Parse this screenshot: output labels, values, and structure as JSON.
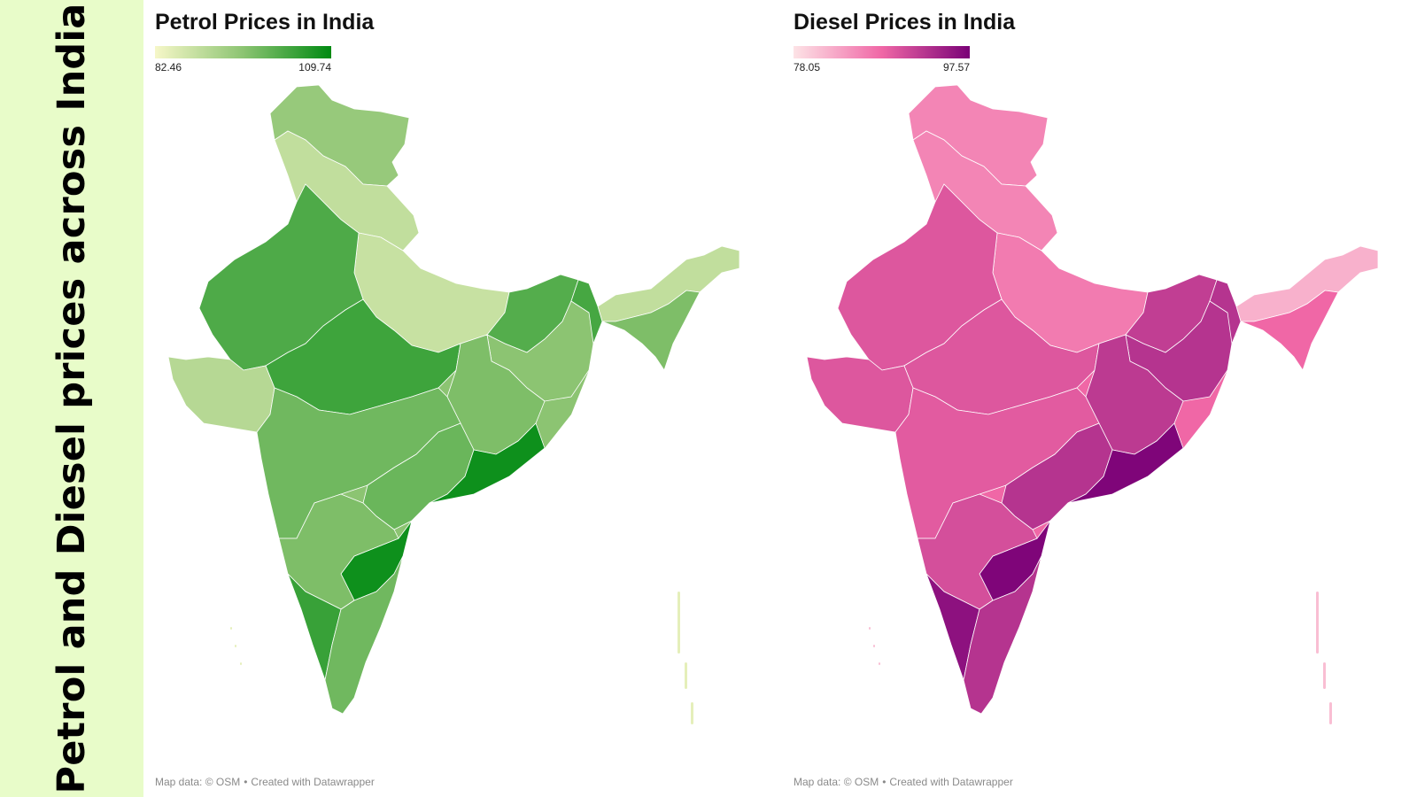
{
  "side_title": "Petrol and Diesel prices across India",
  "attribution": {
    "map_data": "Map data: © OSM",
    "created_with": "Created with Datawrapper"
  },
  "maps": [
    {
      "title": "Petrol Prices in India",
      "legend": {
        "min": "82.46",
        "max": "109.74"
      },
      "colors": {
        "low": "#f6f7c8",
        "mid": "#8cc472",
        "high": "#008a12",
        "border": "#ffffff"
      }
    },
    {
      "title": "Diesel Prices in India",
      "legend": {
        "min": "78.05",
        "max": "97.57"
      },
      "colors": {
        "low": "#fde3e6",
        "mid": "#f067a6",
        "high": "#7a0177",
        "border": "#ffffff"
      }
    }
  ],
  "chart_data": {
    "type": "choropleth",
    "unit": "",
    "petrol_scale": [
      82.46,
      109.74
    ],
    "diesel_scale": [
      78.05,
      97.57
    ]
  }
}
